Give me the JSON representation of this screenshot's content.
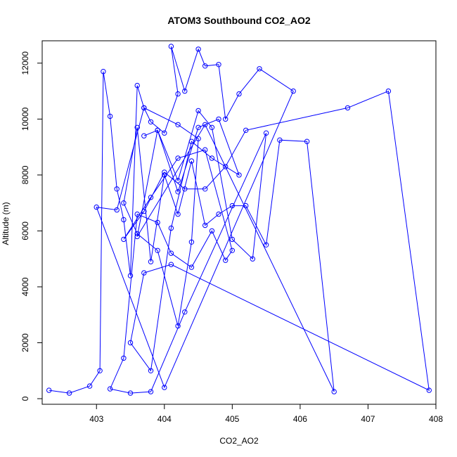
{
  "chart_data": {
    "type": "scatter",
    "title": "ATOM3 Southbound CO2_AO2",
    "xlabel": "CO2_AO2",
    "ylabel": "Altitude (m)",
    "xlim": [
      402.2,
      408.0
    ],
    "ylim": [
      -200,
      12800
    ],
    "xticks": [
      403,
      404,
      405,
      406,
      407,
      408
    ],
    "yticks": [
      0,
      2000,
      4000,
      6000,
      8000,
      10000,
      12000
    ],
    "grid": false,
    "legend": "none",
    "color": "#0000ff",
    "series": [
      {
        "markers": "circles",
        "connected": true,
        "x": [
          402.3,
          402.6,
          402.9,
          403.05,
          403.1,
          403.2,
          403.3,
          403.4,
          403.5,
          403.6,
          403.7,
          403.8,
          404.0,
          404.2,
          404.1,
          404.3,
          404.5,
          404.6,
          404.8,
          404.9,
          405.1,
          405.4,
          405.9,
          404.0,
          403.0,
          403.3,
          403.7,
          404.2,
          404.5,
          404.4,
          404.2,
          403.9,
          403.6,
          403.4,
          403.6,
          403.8,
          404.0,
          404.2,
          404.4,
          404.6,
          404.8,
          405.0,
          405.2,
          405.5,
          405.7,
          406.1,
          406.5,
          404.6,
          403.6,
          403.9,
          404.2,
          404.5,
          404.7,
          405.0,
          405.3,
          405.5,
          404.3,
          403.8,
          403.5,
          403.2,
          403.4,
          403.6,
          403.9,
          404.1,
          404.4,
          404.7,
          404.9,
          405.0,
          404.6,
          404.2,
          403.8,
          403.4,
          403.7,
          404.0,
          404.3,
          404.6,
          404.9,
          405.2,
          406.7,
          407.3,
          407.9,
          404.1,
          403.7,
          403.5,
          403.8,
          404.1,
          404.4,
          404.7,
          405.1,
          404.8,
          404.5,
          404.2,
          403.9,
          403.7
        ],
        "y": [
          300,
          200,
          450,
          1000,
          11700,
          10100,
          7500,
          6400,
          4400,
          11200,
          10400,
          9900,
          9500,
          10900,
          12600,
          11000,
          12500,
          11900,
          11950,
          10000,
          10900,
          11800,
          11000,
          400,
          6850,
          6750,
          10400,
          9800,
          9300,
          5600,
          2600,
          5300,
          5900,
          7000,
          9700,
          4900,
          8000,
          6600,
          8500,
          6200,
          6600,
          6900,
          6900,
          5500,
          9250,
          9200,
          250,
          9800,
          5800,
          9600,
          7800,
          10300,
          9700,
          5700,
          5000,
          9500,
          3100,
          250,
          200,
          350,
          1450,
          6600,
          6300,
          5200,
          4700,
          6000,
          4950,
          5300,
          8900,
          8600,
          7200,
          5700,
          6700,
          8100,
          7500,
          7500,
          8300,
          9600,
          10400,
          11000,
          300,
          4800,
          4500,
          2000,
          1000,
          6100,
          9200,
          8600,
          8000,
          10000,
          9700,
          7400,
          9600,
          9400
        ]
      }
    ]
  }
}
